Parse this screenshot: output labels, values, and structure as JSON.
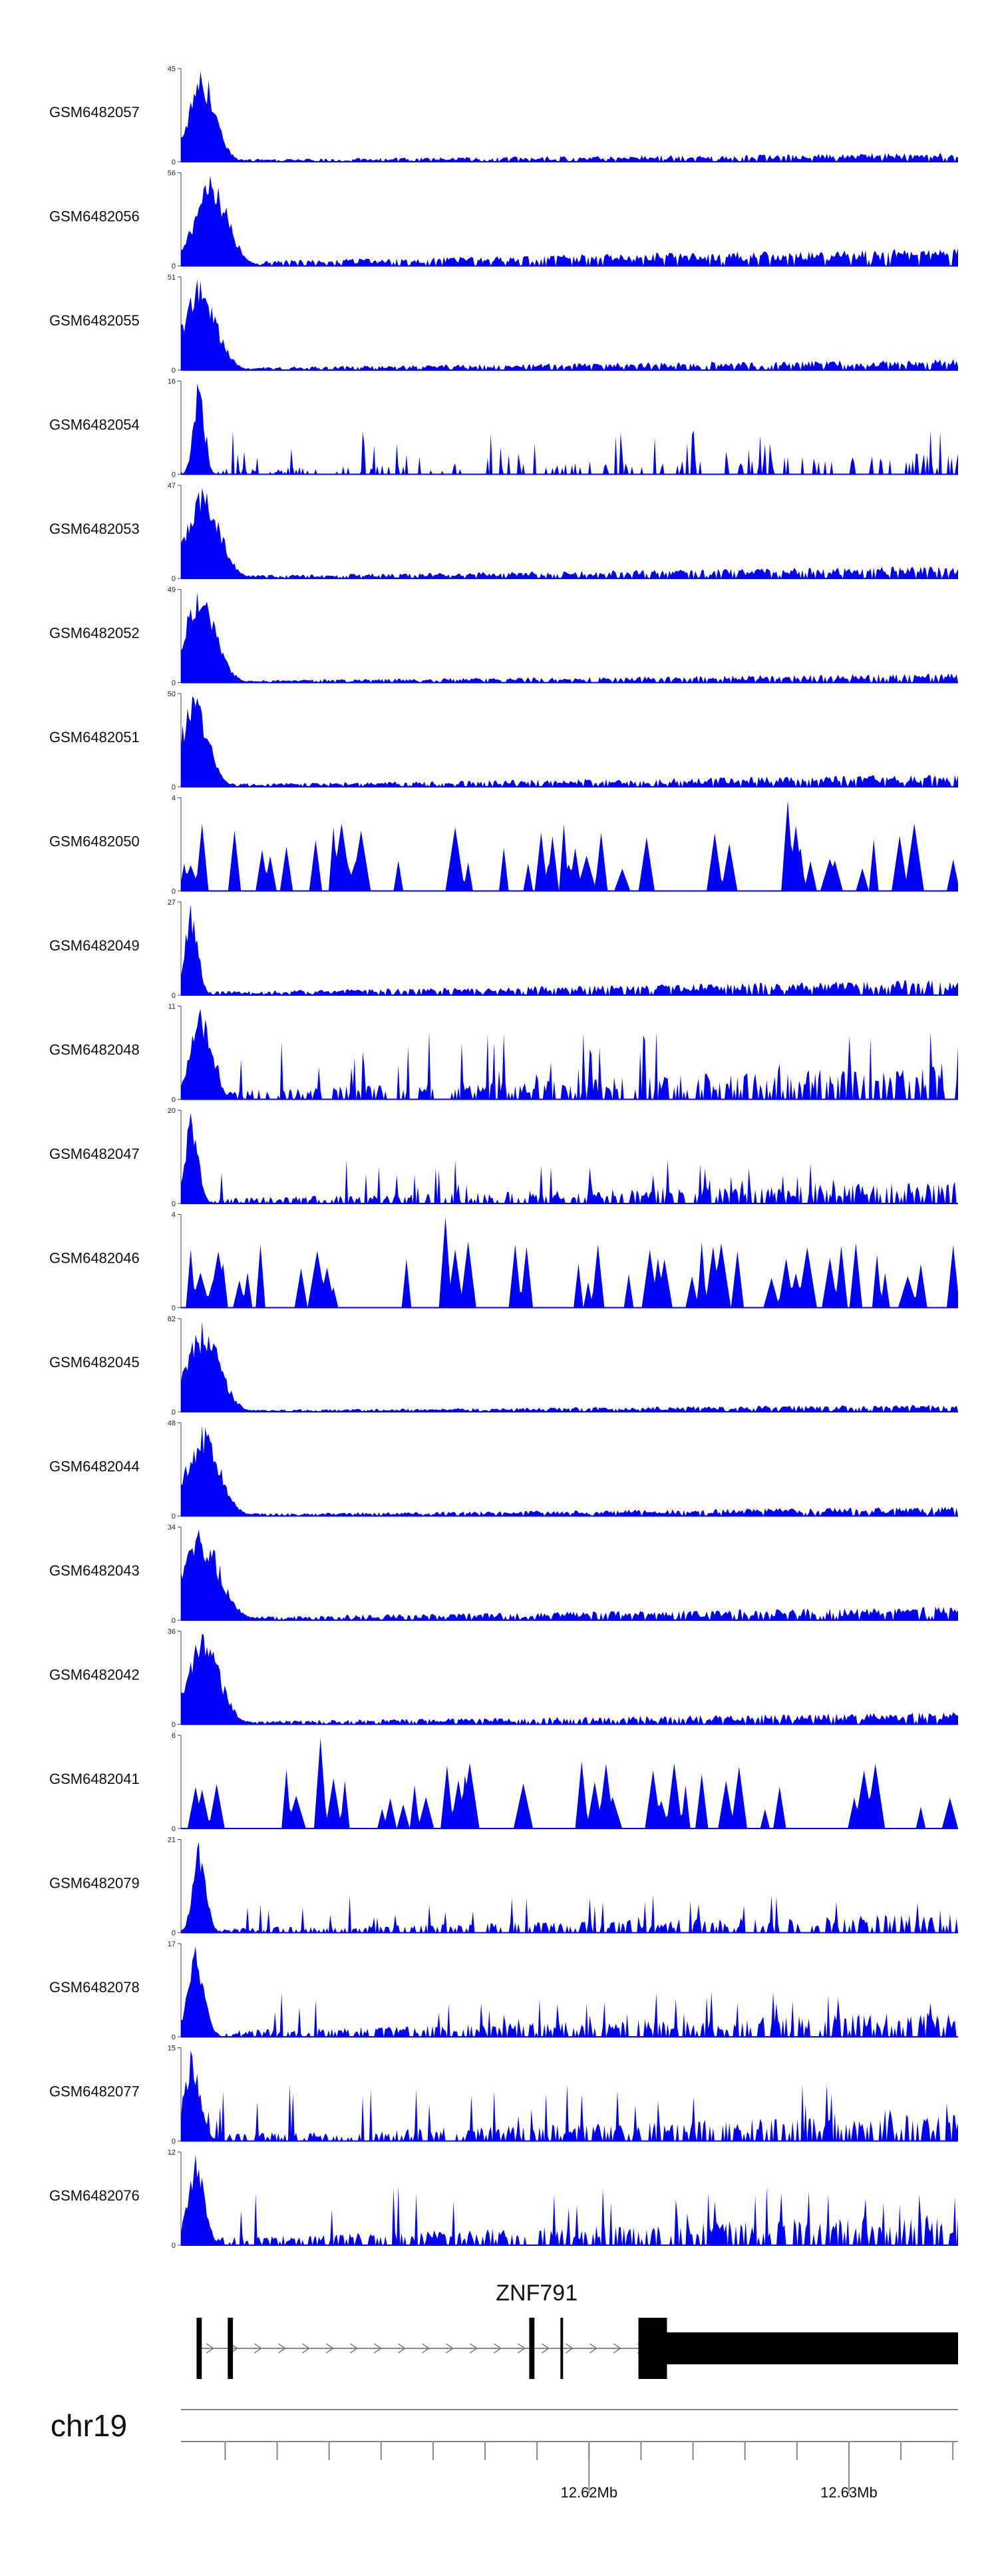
{
  "chart_data": {
    "type": "area",
    "title": "",
    "color": "#0000ff",
    "chromosome": "chr19",
    "x_axis": {
      "start_mb": 12.6043,
      "end_mb": 12.6342,
      "major_ticks": [
        {
          "value": 12.62,
          "label": "12.62Mb"
        },
        {
          "value": 12.63,
          "label": "12.63Mb"
        }
      ],
      "minor_tick_step_mb": 0.002
    },
    "gene": {
      "name": "ZNF791",
      "strand": "+",
      "intron_start_mb": 12.6049,
      "intron_end_mb": 12.6342,
      "exons": [
        {
          "start_mb": 12.6049,
          "end_mb": 12.6051
        },
        {
          "start_mb": 12.6061,
          "end_mb": 12.6063
        },
        {
          "start_mb": 12.6177,
          "end_mb": 12.6179
        },
        {
          "start_mb": 12.6189,
          "end_mb": 12.619
        },
        {
          "start_mb": 12.6219,
          "end_mb": 12.623
        },
        {
          "start_mb": 12.623,
          "end_mb": 12.6342
        }
      ],
      "thick_exon_indices": [
        4
      ]
    },
    "tracks": [
      {
        "name": "GSM6482057",
        "ymax": 45,
        "ylabel_top": "45",
        "ylabel_bottom": "0",
        "peak_at": 0.02,
        "peak_width": 0.025,
        "style": "dense",
        "tail": 0.15
      },
      {
        "name": "GSM6482056",
        "ymax": 56,
        "ylabel_top": "56",
        "ylabel_bottom": "0",
        "peak_at": 0.03,
        "peak_width": 0.03,
        "style": "dense",
        "tail": 0.3
      },
      {
        "name": "GSM6482055",
        "ymax": 51,
        "ylabel_top": "51",
        "ylabel_bottom": "0",
        "peak_at": 0.015,
        "peak_width": 0.03,
        "style": "dense",
        "tail": 0.18
      },
      {
        "name": "GSM6482054",
        "ymax": 16,
        "ylabel_top": "16",
        "ylabel_bottom": "0",
        "peak_at": 0.02,
        "peak_width": 0.01,
        "style": "sparse",
        "tail": 0.35
      },
      {
        "name": "GSM6482053",
        "ymax": 47,
        "ylabel_top": "47",
        "ylabel_bottom": "0",
        "peak_at": 0.02,
        "peak_width": 0.03,
        "style": "dense",
        "tail": 0.2
      },
      {
        "name": "GSM6482052",
        "ymax": 49,
        "ylabel_top": "49",
        "ylabel_bottom": "0",
        "peak_at": 0.015,
        "peak_width": 0.03,
        "style": "dense",
        "tail": 0.15
      },
      {
        "name": "GSM6482051",
        "ymax": 50,
        "ylabel_top": "50",
        "ylabel_bottom": "0",
        "peak_at": 0.01,
        "peak_width": 0.025,
        "style": "dense",
        "tail": 0.2
      },
      {
        "name": "GSM6482050",
        "ymax": 4,
        "ylabel_top": "4",
        "ylabel_bottom": "0",
        "peak_at": 0.78,
        "peak_width": 0.005,
        "style": "spiky",
        "tail": 0.6
      },
      {
        "name": "GSM6482049",
        "ymax": 27,
        "ylabel_top": "27",
        "ylabel_bottom": "0",
        "peak_at": 0.01,
        "peak_width": 0.012,
        "style": "dense",
        "tail": 0.25
      },
      {
        "name": "GSM6482048",
        "ymax": 11,
        "ylabel_top": "11",
        "ylabel_bottom": "0",
        "peak_at": 0.02,
        "peak_width": 0.02,
        "style": "medium",
        "tail": 0.55
      },
      {
        "name": "GSM6482047",
        "ymax": 20,
        "ylabel_top": "20",
        "ylabel_bottom": "0",
        "peak_at": 0.01,
        "peak_width": 0.012,
        "style": "medium",
        "tail": 0.35
      },
      {
        "name": "GSM6482046",
        "ymax": 4,
        "ylabel_top": "4",
        "ylabel_bottom": "0",
        "peak_at": 0.34,
        "peak_width": 0.005,
        "style": "spiky",
        "tail": 0.6
      },
      {
        "name": "GSM6482045",
        "ymax": 62,
        "ylabel_top": "62",
        "ylabel_bottom": "0",
        "peak_at": 0.02,
        "peak_width": 0.03,
        "style": "dense",
        "tail": 0.12
      },
      {
        "name": "GSM6482044",
        "ymax": 48,
        "ylabel_top": "48",
        "ylabel_bottom": "0",
        "peak_at": 0.02,
        "peak_width": 0.03,
        "style": "dense",
        "tail": 0.15
      },
      {
        "name": "GSM6482043",
        "ymax": 34,
        "ylabel_top": "34",
        "ylabel_bottom": "0",
        "peak_at": 0.015,
        "peak_width": 0.035,
        "style": "dense",
        "tail": 0.22
      },
      {
        "name": "GSM6482042",
        "ymax": 36,
        "ylabel_top": "36",
        "ylabel_bottom": "0",
        "peak_at": 0.02,
        "peak_width": 0.03,
        "style": "dense",
        "tail": 0.2
      },
      {
        "name": "GSM6482041",
        "ymax": 6,
        "ylabel_top": "6",
        "ylabel_bottom": "0",
        "peak_at": 0.18,
        "peak_width": 0.005,
        "style": "spiky",
        "tail": 0.6
      },
      {
        "name": "GSM6482079",
        "ymax": 21,
        "ylabel_top": "21",
        "ylabel_bottom": "0",
        "peak_at": 0.02,
        "peak_width": 0.012,
        "style": "medium",
        "tail": 0.3
      },
      {
        "name": "GSM6482078",
        "ymax": 17,
        "ylabel_top": "17",
        "ylabel_bottom": "0",
        "peak_at": 0.015,
        "peak_width": 0.015,
        "style": "medium",
        "tail": 0.4
      },
      {
        "name": "GSM6482077",
        "ymax": 15,
        "ylabel_top": "15",
        "ylabel_bottom": "0",
        "peak_at": 0.01,
        "peak_width": 0.015,
        "style": "medium",
        "tail": 0.45
      },
      {
        "name": "GSM6482076",
        "ymax": 12,
        "ylabel_top": "12",
        "ylabel_bottom": "0",
        "peak_at": 0.015,
        "peak_width": 0.015,
        "style": "medium",
        "tail": 0.5
      }
    ]
  }
}
